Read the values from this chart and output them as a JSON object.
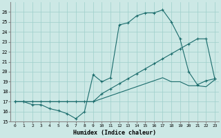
{
  "xlabel": "Humidex (Indice chaleur)",
  "bg_color": "#cce8e5",
  "grid_color": "#9ecfcb",
  "line_color": "#1a6b6b",
  "ylim": [
    15,
    27
  ],
  "xlim": [
    -0.5,
    23.5
  ],
  "yticks": [
    15,
    16,
    17,
    18,
    19,
    20,
    21,
    22,
    23,
    24,
    25,
    26
  ],
  "xticks": [
    0,
    1,
    2,
    3,
    4,
    5,
    6,
    7,
    8,
    9,
    10,
    11,
    12,
    13,
    14,
    15,
    16,
    17,
    18,
    19,
    20,
    21,
    22,
    23
  ],
  "line1_x": [
    0,
    1,
    2,
    3,
    4,
    5,
    6,
    7,
    8,
    9,
    10,
    11,
    12,
    13,
    14,
    15,
    16,
    17,
    18,
    19,
    20,
    21,
    22,
    23
  ],
  "line1_y": [
    17,
    17,
    16.7,
    16.7,
    16.3,
    16.1,
    15.8,
    15.3,
    16.0,
    19.7,
    19.0,
    19.4,
    24.7,
    24.9,
    25.6,
    25.9,
    25.9,
    26.2,
    25.0,
    23.3,
    20.0,
    18.7,
    19.1,
    19.3
  ],
  "line2_x": [
    0,
    1,
    2,
    3,
    4,
    5,
    6,
    7,
    8,
    9,
    10,
    11,
    12,
    13,
    14,
    15,
    16,
    17,
    18,
    19,
    20,
    21,
    22,
    23
  ],
  "line2_y": [
    17,
    17,
    17,
    17,
    17,
    17,
    17,
    17,
    17.0,
    17.0,
    17.8,
    18.3,
    18.8,
    19.3,
    19.8,
    20.3,
    20.8,
    21.3,
    21.8,
    22.3,
    22.8,
    23.3,
    23.3,
    19.3
  ],
  "line3_x": [
    0,
    1,
    2,
    3,
    4,
    5,
    6,
    7,
    8,
    9,
    10,
    11,
    12,
    13,
    14,
    15,
    16,
    17,
    18,
    19,
    20,
    21,
    22,
    23
  ],
  "line3_y": [
    17,
    17,
    17,
    17,
    17,
    17,
    17,
    17,
    17.0,
    17.0,
    17.3,
    17.6,
    17.9,
    18.2,
    18.5,
    18.8,
    19.1,
    19.4,
    19.0,
    19.0,
    18.6,
    18.6,
    18.5,
    19.2
  ]
}
